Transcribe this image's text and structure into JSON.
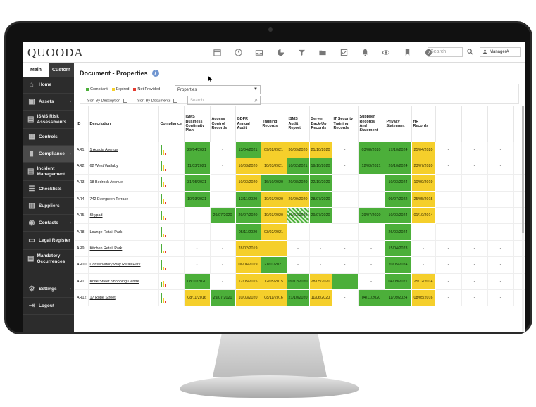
{
  "app": {
    "logo": "QUOODA"
  },
  "topbar": {
    "icons": [
      "calendar-icon",
      "dashboard-icon",
      "inbox-icon",
      "pie-chart-icon",
      "filter-icon",
      "folder-icon",
      "checklist-icon",
      "bell-icon",
      "eye-icon",
      "bookmark-icon",
      "help-icon"
    ],
    "search_placeholder": "Search",
    "user": "ManagerA"
  },
  "sidebar": {
    "tabs": [
      {
        "label": "Main"
      },
      {
        "label": "Custom"
      }
    ],
    "items": [
      {
        "label": "Home",
        "icon": "home-icon",
        "arrow": false
      },
      {
        "label": "Assets",
        "icon": "assets-icon",
        "arrow": true
      },
      {
        "label": "ISMS Risk Assessments",
        "icon": "risk-icon",
        "arrow": false
      },
      {
        "label": "Controls",
        "icon": "controls-icon",
        "arrow": false
      },
      {
        "label": "Compliance",
        "icon": "bar-chart-icon",
        "arrow": true
      },
      {
        "label": "Incident Management",
        "icon": "incident-icon",
        "arrow": false
      },
      {
        "label": "Checklists",
        "icon": "checklist-icon",
        "arrow": false
      },
      {
        "label": "Suppliers",
        "icon": "suppliers-icon",
        "arrow": false
      },
      {
        "label": "Contacts",
        "icon": "contacts-icon",
        "arrow": true
      },
      {
        "label": "Legal Register",
        "icon": "legal-icon",
        "arrow": false
      },
      {
        "label": "Mandatory Occurrences",
        "icon": "mandatory-icon",
        "arrow": false
      },
      {
        "label": "Settings",
        "icon": "gear-icon",
        "arrow": true
      },
      {
        "label": "Logout",
        "icon": "logout-icon",
        "arrow": false
      }
    ]
  },
  "page": {
    "title": "Document - Properties",
    "legend": {
      "compliant": "Compliant",
      "expired": "Expired",
      "not_provided": "Not Provided"
    },
    "selected_type": "Properties",
    "sort_by_description": "Sort By Description",
    "sort_by_documents": "Sort By Documents",
    "search_placeholder": "Search"
  },
  "colors": {
    "green": "#4caf3a",
    "yellow": "#f5cf2b",
    "red": "#e53b2f",
    "sidebar": "#2c2c2c"
  },
  "table": {
    "headers": [
      "ID",
      "Description",
      "Compliance",
      "ISMS Business Continuity Plan",
      "Access Control Records",
      "GDPR Annual Audit",
      "Training Records",
      "ISMS Audit Report",
      "Server Back-Up Records",
      "IT Security Training Records",
      "Supplier Records And Statement",
      "Privacy Statement",
      "HR Records",
      "",
      "",
      "",
      ""
    ],
    "rows": [
      {
        "id": "AR1",
        "desc": "1 Acacia Avenue",
        "bars": [
          1,
          0.5,
          0.2
        ],
        "cells": [
          [
            "g",
            "29/04/2021"
          ],
          [
            "",
            "-"
          ],
          [
            "g",
            "13/04/2021"
          ],
          [
            "y",
            "09/02/2021"
          ],
          [
            "y",
            "30/09/2020"
          ],
          [
            "y",
            "21/10/2020"
          ],
          [
            "",
            "-"
          ],
          [
            "g",
            "03/08/2020"
          ],
          [
            "g",
            "17/10/2024"
          ],
          [
            "y",
            "25/04/2020"
          ],
          [
            "",
            "-"
          ],
          [
            "",
            "-"
          ],
          [
            "",
            "-"
          ],
          [
            "",
            "-"
          ]
        ]
      },
      {
        "id": "AR2",
        "desc": "62 West Wallaby",
        "bars": [
          1,
          0.6,
          0.2
        ],
        "cells": [
          [
            "g",
            "11/03/2021"
          ],
          [
            "",
            "-"
          ],
          [
            "y",
            "10/03/2020"
          ],
          [
            "y",
            "10/03/2021"
          ],
          [
            "g",
            "10/02/2021"
          ],
          [
            "g",
            "19/10/2020"
          ],
          [
            "",
            "-"
          ],
          [
            "g",
            "12/03/2021"
          ],
          [
            "g",
            "20/10/2024"
          ],
          [
            "y",
            "23/07/2020"
          ],
          [
            "",
            "-"
          ],
          [
            "",
            "-"
          ],
          [
            "",
            "-"
          ],
          [
            "",
            "-"
          ]
        ]
      },
      {
        "id": "AR3",
        "desc": "18 Bedrock Avenue",
        "bars": [
          1,
          0.6,
          0.2
        ],
        "cells": [
          [
            "g",
            "31/05/2021"
          ],
          [
            "",
            "-"
          ],
          [
            "y",
            "10/03/2020"
          ],
          [
            "g",
            "16/10/2020"
          ],
          [
            "g",
            "20/08/2020"
          ],
          [
            "g",
            "22/10/2020"
          ],
          [
            "",
            "-"
          ],
          [
            "",
            "-"
          ],
          [
            "g",
            "10/03/2024"
          ],
          [
            "y",
            "10/09/2019"
          ],
          [
            "",
            "-"
          ],
          [
            "",
            "-"
          ],
          [
            "",
            "-"
          ],
          [
            "",
            "-"
          ]
        ]
      },
      {
        "id": "AR4",
        "desc": "742 Evergreen Terrace",
        "bars": [
          1,
          0.5,
          0.2
        ],
        "cells": [
          [
            "g",
            "10/03/2021"
          ],
          [
            "",
            "-"
          ],
          [
            "g",
            "13/11/2020"
          ],
          [
            "y",
            "10/03/2020"
          ],
          [
            "y",
            "29/09/2020"
          ],
          [
            "g",
            "28/07/2020"
          ],
          [
            "",
            "-"
          ],
          [
            "",
            "-"
          ],
          [
            "g",
            "09/07/2022"
          ],
          [
            "y",
            "25/05/2015"
          ],
          [
            "",
            "-"
          ],
          [
            "",
            "-"
          ],
          [
            "",
            "-"
          ],
          [
            "",
            "-"
          ]
        ]
      },
      {
        "id": "AR5",
        "desc": "Skypad",
        "bars": [
          1,
          0.4,
          0.2
        ],
        "cells": [
          [
            "",
            "-"
          ],
          [
            "g",
            "29/07/2020"
          ],
          [
            "g",
            "29/07/2020"
          ],
          [
            "y",
            "10/03/2020"
          ],
          [
            "h",
            "10/03/2020"
          ],
          [
            "g",
            "29/07/2020"
          ],
          [
            "",
            "-"
          ],
          [
            "g",
            "29/07/2020"
          ],
          [
            "g",
            "10/03/2024"
          ],
          [
            "y",
            "01/10/2014"
          ],
          [
            "",
            "-"
          ],
          [
            "",
            "-"
          ],
          [
            "",
            "-"
          ],
          [
            "",
            "-"
          ]
        ]
      },
      {
        "id": "AR8",
        "desc": "Lounge Retail Park",
        "bars": [
          1,
          0.3,
          0.2
        ],
        "cells": [
          [
            "",
            "-"
          ],
          [
            "",
            "-"
          ],
          [
            "g",
            "05/11/2020"
          ],
          [
            "y",
            "03/02/2021"
          ],
          [
            "",
            "-"
          ],
          [
            "",
            "-"
          ],
          [
            "",
            "-"
          ],
          [
            "",
            "-"
          ],
          [
            "g",
            "26/03/2024"
          ],
          [
            "",
            "-"
          ],
          [
            "",
            "-"
          ],
          [
            "",
            "-"
          ],
          [
            "",
            "-"
          ],
          [
            "",
            "-"
          ]
        ]
      },
      {
        "id": "AR9",
        "desc": "Kitchen Retail Park",
        "bars": [
          1,
          0.3,
          0.2
        ],
        "cells": [
          [
            "",
            "-"
          ],
          [
            "",
            "-"
          ],
          [
            "y",
            "28/02/2019"
          ],
          [
            "y",
            ""
          ],
          [
            "",
            "-"
          ],
          [
            "",
            "-"
          ],
          [
            "",
            "-"
          ],
          [
            "",
            "-"
          ],
          [
            "g",
            "15/04/2023"
          ],
          [
            "",
            "-"
          ],
          [
            "",
            "-"
          ],
          [
            "",
            "-"
          ],
          [
            "",
            "-"
          ],
          [
            "",
            "-"
          ]
        ]
      },
      {
        "id": "AR10",
        "desc": "Conservatory Way Retail Park",
        "bars": [
          1,
          0.3,
          0.2
        ],
        "cells": [
          [
            "",
            "-"
          ],
          [
            "",
            "-"
          ],
          [
            "y",
            "06/06/2019"
          ],
          [
            "g",
            "21/01/2021"
          ],
          [
            "",
            "-"
          ],
          [
            "",
            "-"
          ],
          [
            "",
            "-"
          ],
          [
            "",
            "-"
          ],
          [
            "g",
            "20/05/2024"
          ],
          [
            "",
            "-"
          ],
          [
            "",
            "-"
          ],
          [
            "",
            "-"
          ],
          [
            "",
            "-"
          ],
          [
            "",
            "-"
          ]
        ]
      },
      {
        "id": "AR11",
        "desc": "Knife Street Shopping Centre",
        "bars": [
          0.5,
          0.6,
          0.2
        ],
        "cells": [
          [
            "g",
            "08/10/2020"
          ],
          [
            "",
            "-"
          ],
          [
            "y",
            "12/05/2015"
          ],
          [
            "y",
            "12/05/2015"
          ],
          [
            "g",
            "09/12/2020"
          ],
          [
            "y",
            "28/05/2020"
          ],
          [
            "g",
            ""
          ],
          [
            "",
            "-"
          ],
          [
            "g",
            "04/09/2021"
          ],
          [
            "y",
            "25/12/2014"
          ],
          [
            "",
            "-"
          ],
          [
            "",
            "-"
          ],
          [
            "",
            "-"
          ],
          [
            "",
            "-"
          ]
        ]
      },
      {
        "id": "AR12",
        "desc": "17 Rope Street",
        "bars": [
          1,
          0.5,
          0.2
        ],
        "cells": [
          [
            "y",
            "08/11/2016"
          ],
          [
            "g",
            "29/07/2020"
          ],
          [
            "y",
            "10/03/2020"
          ],
          [
            "y",
            "08/11/2016"
          ],
          [
            "g",
            "21/10/2020"
          ],
          [
            "y",
            "11/06/2020"
          ],
          [
            "",
            "-"
          ],
          [
            "g",
            "04/11/2020"
          ],
          [
            "g",
            "11/09/2024"
          ],
          [
            "y",
            "08/05/2016"
          ],
          [
            "",
            "-"
          ],
          [
            "",
            "-"
          ],
          [
            "",
            "-"
          ],
          [
            "",
            "-"
          ]
        ]
      }
    ]
  }
}
